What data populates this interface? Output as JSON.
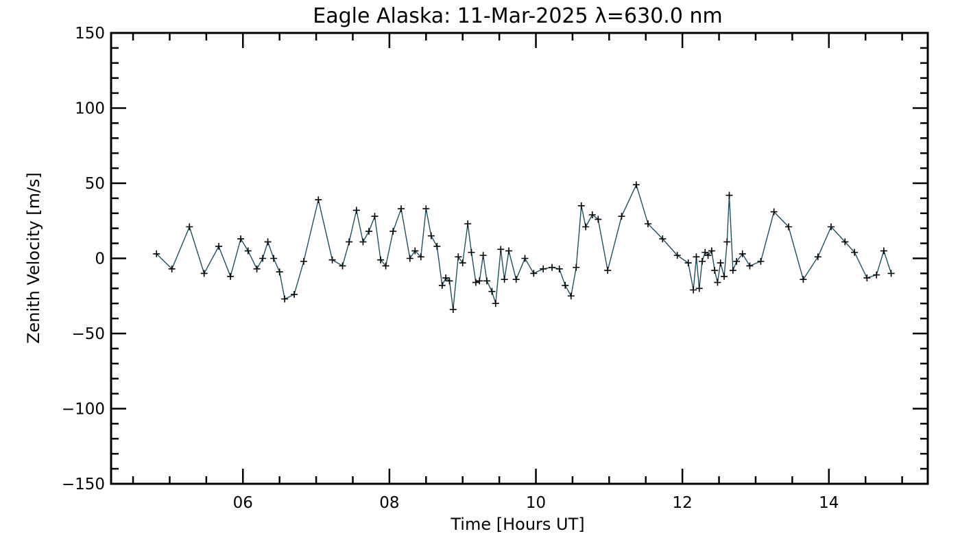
{
  "chart_data": {
    "type": "line",
    "title": "Eagle Alaska: 11-Mar-2025 λ=630.0 nm",
    "xlabel": "Time [Hours UT]",
    "ylabel": "Zenith Velocity [m/s]",
    "xlim": [
      4.2,
      15.35
    ],
    "ylim": [
      -150,
      150
    ],
    "x_ticks": [
      6,
      8,
      10,
      12,
      14
    ],
    "x_tick_labels": [
      "06",
      "08",
      "10",
      "12",
      "14"
    ],
    "y_ticks": [
      150,
      100,
      50,
      0,
      -50,
      -100,
      -150
    ],
    "y_tick_labels": [
      "150",
      "100",
      "50",
      "0",
      "−50",
      "−100",
      "−150"
    ],
    "grid": false,
    "line_color": "#1f4e5f",
    "marker": "+",
    "series": [
      {
        "name": "Zenith Velocity",
        "x": [
          4.82,
          5.03,
          5.27,
          5.47,
          5.67,
          5.83,
          5.97,
          6.07,
          6.19,
          6.27,
          6.34,
          6.42,
          6.5,
          6.57,
          6.7,
          6.83,
          7.03,
          7.22,
          7.36,
          7.45,
          7.55,
          7.64,
          7.72,
          7.8,
          7.88,
          7.95,
          8.05,
          8.16,
          8.28,
          8.35,
          8.43,
          8.5,
          8.57,
          8.65,
          8.72,
          8.77,
          8.82,
          8.87,
          8.94,
          9.0,
          9.07,
          9.12,
          9.18,
          9.23,
          9.28,
          9.33,
          9.4,
          9.45,
          9.52,
          9.57,
          9.63,
          9.73,
          9.85,
          9.97,
          10.1,
          10.22,
          10.32,
          10.4,
          10.48,
          10.55,
          10.62,
          10.68,
          10.77,
          10.85,
          10.98,
          11.17,
          11.37,
          11.53,
          11.73,
          11.93,
          12.08,
          12.15,
          12.19,
          12.23,
          12.27,
          12.31,
          12.35,
          12.4,
          12.44,
          12.48,
          12.52,
          12.57,
          12.61,
          12.64,
          12.69,
          12.74,
          12.82,
          12.92,
          13.07,
          13.25,
          13.45,
          13.65,
          13.85,
          14.03,
          14.22,
          14.35,
          14.52,
          14.65,
          14.75,
          14.85
        ],
        "y": [
          3,
          -7,
          21,
          -10,
          8,
          -12,
          13,
          5,
          -7,
          0,
          11,
          0,
          -9,
          -27,
          -24,
          -2,
          39,
          -1,
          -5,
          11,
          32,
          11,
          18,
          28,
          -1,
          -5,
          18,
          33,
          0,
          5,
          1,
          33,
          15,
          8,
          -18,
          -13,
          -15,
          -34,
          1,
          -3,
          23,
          4,
          -16,
          -15,
          2,
          -15,
          -22,
          -30,
          6,
          -14,
          5,
          -14,
          0,
          -10,
          -7,
          -6,
          -7,
          -18,
          -25,
          -6,
          35,
          21,
          29,
          26,
          -8,
          28,
          49,
          23,
          13,
          2,
          -3,
          -21,
          1,
          -20,
          -2,
          4,
          2,
          5,
          -8,
          -16,
          -3,
          -12,
          11,
          42,
          -8,
          -2,
          3,
          -5,
          -2,
          31,
          21,
          -14,
          1,
          21,
          11,
          4,
          -13,
          -11,
          5,
          -10
        ]
      }
    ]
  }
}
